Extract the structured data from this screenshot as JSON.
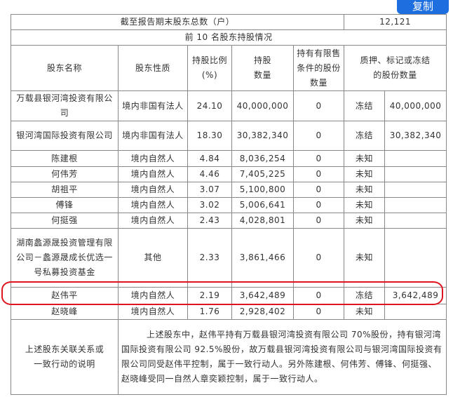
{
  "copy_button": "复制",
  "summary": {
    "label": "截至报告期末股东总数（户）",
    "value": "12,121"
  },
  "section_title": "前 10 名股东持股情况",
  "headers": [
    "股东名称",
    "股东性质",
    "持股比例(%)",
    "持股数量",
    "持有有限售条件的股份数量",
    "质押、标记或冻结的股份数量"
  ],
  "rows": [
    {
      "name": "万载县银河湾投资有限公司",
      "type": "境内非国有法人",
      "ratio": "24.10",
      "shares": "40,000,000",
      "restricted": "0",
      "status": "冻结",
      "pledged": "40,000,000"
    },
    {
      "name": "银河湾国际投资有限公司",
      "type": "境内非国有法人",
      "ratio": "18.30",
      "shares": "30,382,340",
      "restricted": "0",
      "status": "冻结",
      "pledged": "30,382,340"
    },
    {
      "name": "陈建根",
      "type": "境内自然人",
      "ratio": "4.84",
      "shares": "8,036,254",
      "restricted": "0",
      "status": "未知",
      "pledged": ""
    },
    {
      "name": "何伟芳",
      "type": "境内自然人",
      "ratio": "4.46",
      "shares": "7,405,225",
      "restricted": "0",
      "status": "未知",
      "pledged": ""
    },
    {
      "name": "胡祖平",
      "type": "境内自然人",
      "ratio": "3.07",
      "shares": "5,100,800",
      "restricted": "0",
      "status": "未知",
      "pledged": ""
    },
    {
      "name": "傅锋",
      "type": "境内自然人",
      "ratio": "3.02",
      "shares": "5,006,641",
      "restricted": "0",
      "status": "未知",
      "pledged": ""
    },
    {
      "name": "何挺强",
      "type": "境内自然人",
      "ratio": "2.43",
      "shares": "4,028,801",
      "restricted": "0",
      "status": "未知",
      "pledged": ""
    },
    {
      "name": "湖南蠡源晟投资管理有限公司－蠡源晟成长优选一号私募投资基金",
      "type": "其他",
      "ratio": "2.33",
      "shares": "3,861,466",
      "restricted": "0",
      "status": "未知",
      "pledged": ""
    },
    {
      "name": "赵伟平",
      "type": "境内自然人",
      "ratio": "2.19",
      "shares": "3,642,489",
      "restricted": "0",
      "status": "冻结",
      "pledged": "3,642,489"
    },
    {
      "name": "赵晓峰",
      "type": "境内自然人",
      "ratio": "1.76",
      "shares": "2,928,402",
      "restricted": "0",
      "status": "未知",
      "pledged": ""
    }
  ],
  "note": {
    "label": "上述股东关联关系或一致行动的说明",
    "text": "上述股东中，赵伟平持有万载县银河湾投资有限公司 70%股份，持有银河湾国际投资有限公司 92.5%股份，故万载县银河湾投资有限公司与银河湾国际投资有限公司同受赵伟平控制，属于一致行动人。另外陈建根、何伟芳、傅锋、何挺强、赵晓峰受同一自然人章奕颖控制，属于一致行动人。"
  },
  "highlight_color": "#e0141e",
  "accent_color": "#1d6fe0"
}
